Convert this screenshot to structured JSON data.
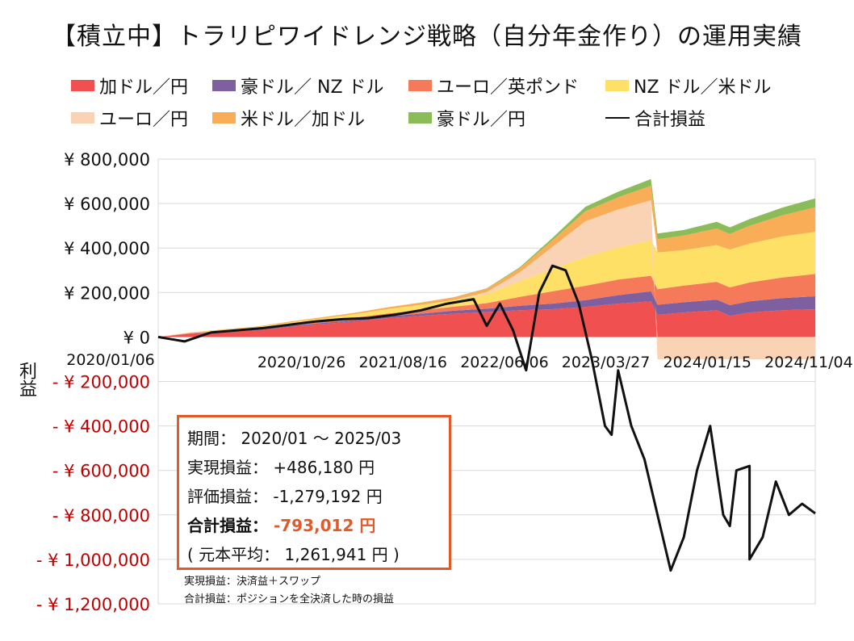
{
  "title": "【積立中】トラリピワイドレンジ戦略（自分年金作り）の運用実績",
  "legend": [
    {
      "label": "加ドル／円",
      "color": "#f05050",
      "type": "area"
    },
    {
      "label": "豪ドル／ NZ ドル",
      "color": "#7e5fa0",
      "type": "area"
    },
    {
      "label": "ユーロ／英ポンド",
      "color": "#f47a5a",
      "type": "area"
    },
    {
      "label": "NZ ドル／米ドル",
      "color": "#ffe066",
      "type": "area"
    },
    {
      "label": "ユーロ／円",
      "color": "#f9d3b4",
      "type": "area"
    },
    {
      "label": "米ドル／加ドル",
      "color": "#f8ad56",
      "type": "area"
    },
    {
      "label": "豪ドル／円",
      "color": "#8cbc5a",
      "type": "area"
    },
    {
      "label": "合計損益",
      "color": "#111111",
      "type": "line"
    }
  ],
  "yaxis_label": "利益",
  "info": {
    "period_label": "期間：",
    "period_value": "2020/01 ～ 2025/03",
    "realized_label": "実現損益：",
    "realized_value": "+486,180 円",
    "unrealized_label": "評価損益：",
    "unrealized_value": "-1,279,192 円",
    "total_label": "合計損益：",
    "total_value": "-793,012 円",
    "principal_open": "(",
    "principal_label": "元本平均：",
    "principal_value": "1,261,941 円",
    "principal_close": ")"
  },
  "notes": {
    "line1": "実現損益：決済益＋スワップ",
    "line2": "合計損益：ポジションを全決済した時の損益"
  },
  "chart_data": {
    "type": "area",
    "stacked": true,
    "x_ticks": [
      "2020/01/06",
      "2020/10/26",
      "2021/08/16",
      "2022/06/06",
      "2023/03/27",
      "2024/01/15",
      "2024/11/04"
    ],
    "ylim": [
      -1200000,
      800000
    ],
    "y_ticks": [
      800000,
      600000,
      400000,
      200000,
      0,
      -200000,
      -400000,
      -600000,
      -800000,
      -1000000,
      -1200000
    ],
    "y_tick_labels": [
      "¥ 800,000",
      "¥ 600,000",
      "¥ 400,000",
      "¥ 200,000",
      "¥ 0",
      "- ¥ 200,000",
      "- ¥ 400,000",
      "- ¥ 600,000",
      "- ¥ 800,000",
      "- ¥ 1,000,000",
      "- ¥ 1,200,000"
    ],
    "grid": true,
    "legend_position": "top",
    "x": [
      0,
      0.05,
      0.1,
      0.15,
      0.2,
      0.25,
      0.3,
      0.35,
      0.4,
      0.45,
      0.5,
      0.55,
      0.6,
      0.65,
      0.7,
      0.75,
      0.76,
      0.8,
      0.85,
      0.87,
      0.9,
      0.95,
      1.0
    ],
    "series": [
      {
        "name": "加ドル／円",
        "values": [
          0,
          15000,
          22000,
          30000,
          45000,
          58000,
          70000,
          85000,
          95000,
          105000,
          112000,
          120000,
          125000,
          135000,
          150000,
          160000,
          100000,
          110000,
          120000,
          95000,
          110000,
          120000,
          125000
        ]
      },
      {
        "name": "豪ドル／ NZ ドル",
        "values": [
          0,
          1000,
          2000,
          3000,
          4000,
          5000,
          6000,
          8000,
          10000,
          13000,
          15000,
          20000,
          25000,
          30000,
          38000,
          45000,
          45000,
          46000,
          48000,
          48000,
          50000,
          55000,
          58000
        ]
      },
      {
        "name": "ユーロ／英ポンド",
        "values": [
          0,
          2000,
          4000,
          5000,
          7000,
          9000,
          11000,
          13000,
          15000,
          18000,
          25000,
          40000,
          55000,
          65000,
          70000,
          70000,
          70000,
          75000,
          80000,
          80000,
          85000,
          92000,
          100000
        ]
      },
      {
        "name": "NZ ドル／米ドル",
        "values": [
          0,
          2000,
          4000,
          6000,
          9000,
          12000,
          16000,
          20000,
          25000,
          30000,
          40000,
          70000,
          100000,
          130000,
          145000,
          160000,
          165000,
          160000,
          165000,
          170000,
          175000,
          185000,
          190000
        ]
      },
      {
        "name": "ユーロ／円",
        "values": [
          0,
          0,
          0,
          0,
          0,
          0,
          0,
          0,
          0,
          0,
          10000,
          40000,
          100000,
          160000,
          170000,
          180000,
          -100000,
          -100000,
          -100000,
          -100000,
          -100000,
          -100000,
          -100000
        ]
      },
      {
        "name": "米ドル／加ドル",
        "values": [
          0,
          1000,
          2000,
          3000,
          4000,
          5000,
          6000,
          8000,
          10000,
          12000,
          15000,
          18000,
          30000,
          45000,
          55000,
          65000,
          60000,
          65000,
          75000,
          70000,
          80000,
          95000,
          110000
        ]
      },
      {
        "name": "豪ドル／円",
        "values": [
          0,
          0,
          0,
          0,
          0,
          0,
          0,
          0,
          0,
          1000,
          2000,
          5000,
          10000,
          20000,
          25000,
          30000,
          25000,
          25000,
          30000,
          30000,
          30000,
          35000,
          40000
        ]
      }
    ],
    "total_line": {
      "name": "合計損益",
      "x": [
        0,
        0.02,
        0.04,
        0.06,
        0.08,
        0.1,
        0.12,
        0.14,
        0.16,
        0.2,
        0.24,
        0.28,
        0.32,
        0.36,
        0.4,
        0.44,
        0.48,
        0.5,
        0.52,
        0.54,
        0.56,
        0.58,
        0.6,
        0.62,
        0.64,
        0.66,
        0.68,
        0.69,
        0.7,
        0.72,
        0.74,
        0.76,
        0.78,
        0.8,
        0.82,
        0.84,
        0.86,
        0.87,
        0.88,
        0.9,
        0.9,
        0.92,
        0.94,
        0.96,
        0.98,
        1.0
      ],
      "values": [
        0,
        -10000,
        -20000,
        0,
        20000,
        25000,
        30000,
        35000,
        40000,
        55000,
        70000,
        80000,
        85000,
        100000,
        120000,
        150000,
        170000,
        50000,
        150000,
        30000,
        -150000,
        200000,
        320000,
        300000,
        150000,
        -100000,
        -400000,
        -440000,
        -150000,
        -400000,
        -550000,
        -800000,
        -1050000,
        -900000,
        -600000,
        -400000,
        -800000,
        -850000,
        -600000,
        -580000,
        -1000000,
        -900000,
        -650000,
        -800000,
        -750000,
        -793012
      ]
    }
  }
}
